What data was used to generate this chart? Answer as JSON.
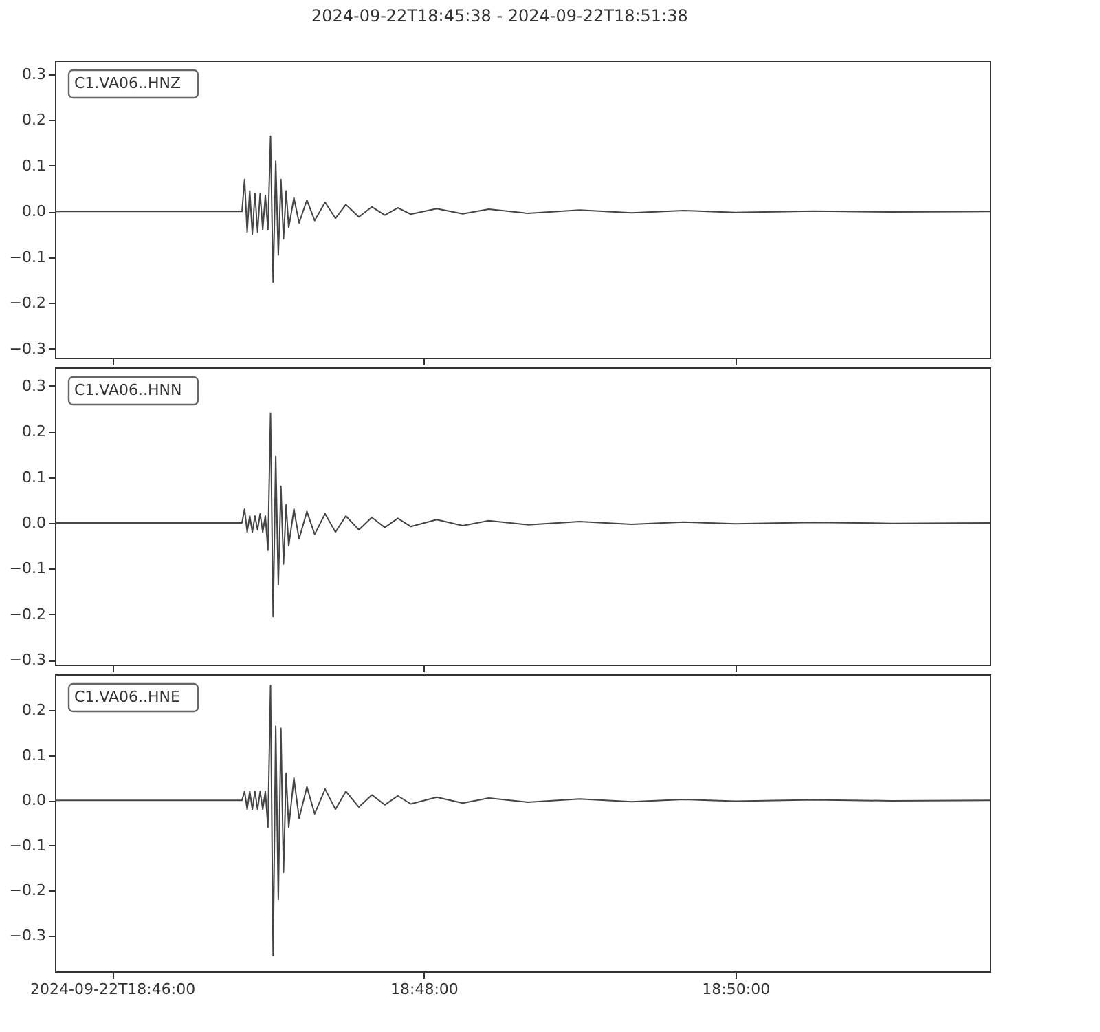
{
  "chart_data": [
    {
      "type": "line",
      "title": "2024-09-22T18:45:38  -  2024-09-22T18:51:38",
      "tick_labels": "y",
      "grid": false,
      "line_style": "solid",
      "xlim": [
        "2024-09-22T18:45:38",
        "2024-09-22T18:51:38"
      ],
      "xticks": [
        {
          "value": "2024-09-22T18:46:00",
          "label": null
        },
        {
          "value": "2024-09-22T18:48:00",
          "label": null
        },
        {
          "value": "2024-09-22T18:50:00",
          "label": null
        }
      ],
      "ylim": [
        -0.32,
        0.33
      ],
      "yticks": [
        {
          "value": -0.3,
          "label": "−0.3"
        },
        {
          "value": -0.2,
          "label": "−0.2"
        },
        {
          "value": -0.1,
          "label": "−0.1"
        },
        {
          "value": 0,
          "label": "0.0"
        },
        0.1,
        0.2,
        0.3
      ],
      "series": [
        {
          "name": "C1.VA06..HNZ",
          "color": "#454545",
          "x": [
            "2024-09-22T18:45:38",
            "2024-09-22T18:46:50",
            "2024-09-22T18:46:51",
            "2024-09-22T18:46:52",
            "2024-09-22T18:46:53",
            "2024-09-22T18:46:54",
            "2024-09-22T18:46:55",
            "2024-09-22T18:46:56",
            "2024-09-22T18:46:57",
            "2024-09-22T18:46:58",
            "2024-09-22T18:46:59",
            "2024-09-22T18:47:00",
            "2024-09-22T18:47:01",
            "2024-09-22T18:47:02",
            "2024-09-22T18:47:03",
            "2024-09-22T18:47:04",
            "2024-09-22T18:47:05",
            "2024-09-22T18:47:06",
            "2024-09-22T18:47:07",
            "2024-09-22T18:47:08",
            "2024-09-22T18:47:10",
            "2024-09-22T18:47:12",
            "2024-09-22T18:47:15",
            "2024-09-22T18:47:18",
            "2024-09-22T18:47:22",
            "2024-09-22T18:47:26",
            "2024-09-22T18:47:30",
            "2024-09-22T18:47:35",
            "2024-09-22T18:47:40",
            "2024-09-22T18:47:45",
            "2024-09-22T18:47:50",
            "2024-09-22T18:47:55",
            "2024-09-22T18:48:05",
            "2024-09-22T18:48:15",
            "2024-09-22T18:48:25",
            "2024-09-22T18:48:40",
            "2024-09-22T18:49:00",
            "2024-09-22T18:49:20",
            "2024-09-22T18:49:40",
            "2024-09-22T18:50:00",
            "2024-09-22T18:50:30",
            "2024-09-22T18:51:00",
            "2024-09-22T18:51:38"
          ],
          "values": [
            0,
            0,
            0.07,
            -0.045,
            0.045,
            -0.05,
            0.04,
            -0.045,
            0.04,
            -0.04,
            0.035,
            -0.04,
            0.165,
            -0.155,
            0.11,
            -0.095,
            0.07,
            -0.06,
            0.045,
            -0.035,
            0.03,
            -0.025,
            0.025,
            -0.02,
            0.02,
            -0.015,
            0.015,
            -0.012,
            0.01,
            -0.008,
            0.008,
            -0.006,
            0.006,
            -0.005,
            0.005,
            -0.004,
            0.003,
            -0.003,
            0.002,
            -0.002,
            0.001,
            -0.001,
            0
          ]
        }
      ]
    },
    {
      "type": "line",
      "tick_labels": "y",
      "grid": false,
      "line_style": "solid",
      "xlim": [
        "2024-09-22T18:45:38",
        "2024-09-22T18:51:38"
      ],
      "xticks": [
        {
          "value": "2024-09-22T18:46:00",
          "label": null
        },
        {
          "value": "2024-09-22T18:48:00",
          "label": null
        },
        {
          "value": "2024-09-22T18:50:00",
          "label": null
        }
      ],
      "ylim": [
        -0.31,
        0.34
      ],
      "yticks": [
        {
          "value": -0.3,
          "label": "−0.3"
        },
        {
          "value": -0.2,
          "label": "−0.2"
        },
        {
          "value": -0.1,
          "label": "−0.1"
        },
        {
          "value": 0,
          "label": "0.0"
        },
        0.1,
        0.2,
        0.3
      ],
      "series": [
        {
          "name": "C1.VA06..HNN",
          "color": "#454545",
          "x": [
            "2024-09-22T18:45:38",
            "2024-09-22T18:46:50",
            "2024-09-22T18:46:51",
            "2024-09-22T18:46:52",
            "2024-09-22T18:46:53",
            "2024-09-22T18:46:54",
            "2024-09-22T18:46:55",
            "2024-09-22T18:46:56",
            "2024-09-22T18:46:57",
            "2024-09-22T18:46:58",
            "2024-09-22T18:46:59",
            "2024-09-22T18:47:00",
            "2024-09-22T18:47:01",
            "2024-09-22T18:47:02",
            "2024-09-22T18:47:03",
            "2024-09-22T18:47:04",
            "2024-09-22T18:47:05",
            "2024-09-22T18:47:06",
            "2024-09-22T18:47:07",
            "2024-09-22T18:47:08",
            "2024-09-22T18:47:10",
            "2024-09-22T18:47:12",
            "2024-09-22T18:47:15",
            "2024-09-22T18:47:18",
            "2024-09-22T18:47:22",
            "2024-09-22T18:47:26",
            "2024-09-22T18:47:30",
            "2024-09-22T18:47:35",
            "2024-09-22T18:47:40",
            "2024-09-22T18:47:45",
            "2024-09-22T18:47:50",
            "2024-09-22T18:47:55",
            "2024-09-22T18:48:05",
            "2024-09-22T18:48:15",
            "2024-09-22T18:48:25",
            "2024-09-22T18:48:40",
            "2024-09-22T18:49:00",
            "2024-09-22T18:49:20",
            "2024-09-22T18:49:40",
            "2024-09-22T18:50:00",
            "2024-09-22T18:50:30",
            "2024-09-22T18:51:00",
            "2024-09-22T18:51:38"
          ],
          "values": [
            0,
            0,
            0.03,
            -0.02,
            0.015,
            -0.02,
            0.015,
            -0.015,
            0.02,
            -0.02,
            0.015,
            -0.06,
            0.24,
            -0.205,
            0.145,
            -0.135,
            0.08,
            -0.09,
            0.04,
            -0.05,
            0.03,
            -0.035,
            0.025,
            -0.025,
            0.02,
            -0.02,
            0.015,
            -0.015,
            0.012,
            -0.01,
            0.01,
            -0.008,
            0.007,
            -0.006,
            0.005,
            -0.004,
            0.003,
            -0.003,
            0.002,
            -0.002,
            0.001,
            -0.001,
            0
          ]
        }
      ]
    },
    {
      "type": "line",
      "grid": false,
      "line_style": "solid",
      "xlim": [
        "2024-09-22T18:45:38",
        "2024-09-22T18:51:38"
      ],
      "xticks": [
        "2024-09-22T18:46:00",
        {
          "value": "2024-09-22T18:48:00",
          "label": "18:48:00"
        },
        {
          "value": "2024-09-22T18:50:00",
          "label": "18:50:00"
        }
      ],
      "ylim": [
        -0.38,
        0.28
      ],
      "yticks": [
        {
          "value": -0.3,
          "label": "−0.3"
        },
        {
          "value": -0.2,
          "label": "−0.2"
        },
        {
          "value": -0.1,
          "label": "−0.1"
        },
        {
          "value": 0,
          "label": "0.0"
        },
        0.1,
        0.2
      ],
      "series": [
        {
          "name": "C1.VA06..HNE",
          "color": "#454545",
          "x": [
            "2024-09-22T18:45:38",
            "2024-09-22T18:46:50",
            "2024-09-22T18:46:51",
            "2024-09-22T18:46:52",
            "2024-09-22T18:46:53",
            "2024-09-22T18:46:54",
            "2024-09-22T18:46:55",
            "2024-09-22T18:46:56",
            "2024-09-22T18:46:57",
            "2024-09-22T18:46:58",
            "2024-09-22T18:46:59",
            "2024-09-22T18:47:00",
            "2024-09-22T18:47:01",
            "2024-09-22T18:47:02",
            "2024-09-22T18:47:03",
            "2024-09-22T18:47:04",
            "2024-09-22T18:47:05",
            "2024-09-22T18:47:06",
            "2024-09-22T18:47:07",
            "2024-09-22T18:47:08",
            "2024-09-22T18:47:10",
            "2024-09-22T18:47:12",
            "2024-09-22T18:47:15",
            "2024-09-22T18:47:18",
            "2024-09-22T18:47:22",
            "2024-09-22T18:47:26",
            "2024-09-22T18:47:30",
            "2024-09-22T18:47:35",
            "2024-09-22T18:47:40",
            "2024-09-22T18:47:45",
            "2024-09-22T18:47:50",
            "2024-09-22T18:47:55",
            "2024-09-22T18:48:05",
            "2024-09-22T18:48:15",
            "2024-09-22T18:48:25",
            "2024-09-22T18:48:40",
            "2024-09-22T18:49:00",
            "2024-09-22T18:49:20",
            "2024-09-22T18:49:40",
            "2024-09-22T18:50:00",
            "2024-09-22T18:50:30",
            "2024-09-22T18:51:00",
            "2024-09-22T18:51:38"
          ],
          "values": [
            0,
            0,
            0.02,
            -0.02,
            0.02,
            -0.02,
            0.02,
            -0.02,
            0.02,
            -0.02,
            0.02,
            -0.06,
            0.255,
            -0.345,
            0.165,
            -0.22,
            0.16,
            -0.16,
            0.06,
            -0.06,
            0.05,
            -0.04,
            0.03,
            -0.03,
            0.025,
            -0.02,
            0.02,
            -0.015,
            0.012,
            -0.01,
            0.01,
            -0.008,
            0.007,
            -0.006,
            0.005,
            -0.004,
            0.003,
            -0.003,
            0.002,
            -0.002,
            0.001,
            -0.001,
            0
          ]
        }
      ]
    }
  ]
}
